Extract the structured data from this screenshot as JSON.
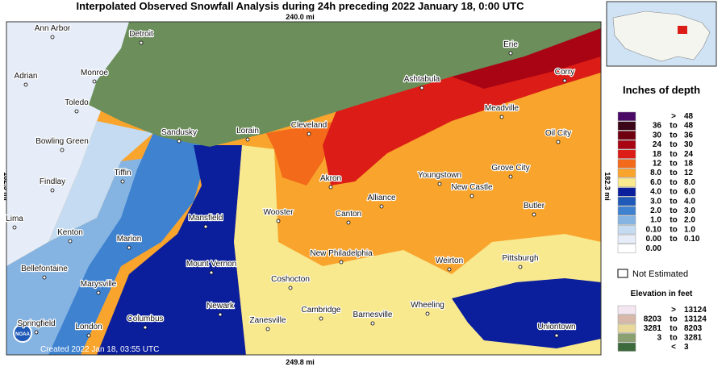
{
  "header": {
    "title": "Interpolated Observed Snowfall Analysis during 24h preceding 2022 January 18, 0:00 UTC"
  },
  "scale": {
    "top": "240.0 mi",
    "bottom": "249.8 mi",
    "left": "182.3 mi",
    "right": "182.3 mi"
  },
  "credit": "Created 2022 Jan 18, 03:55 UTC",
  "logo": "NOAA",
  "cities": [
    "Ann Arbor",
    "Detroit",
    "Adrian",
    "Monroe",
    "Toledo",
    "Sandusky",
    "Lorain",
    "Cleveland",
    "Ashtabula",
    "Erie",
    "Corry",
    "Meadville",
    "Oil City",
    "Bowling Green",
    "Tiffin",
    "Findlay",
    "Akron",
    "Youngstown",
    "Grove City",
    "New Castle",
    "Alliance",
    "Wooster",
    "Canton",
    "Mansfield",
    "Butler",
    "Lima",
    "Kenton",
    "Marion",
    "New Philadelphia",
    "Mount Vernon",
    "Weirton",
    "Pittsburgh",
    "Bellefontaine",
    "Coshocton",
    "Marysville",
    "Cambridge",
    "Barnesville",
    "Wheeling",
    "Newark",
    "Zanesville",
    "Springfield",
    "London",
    "Columbus",
    "Uniontown"
  ],
  "legend": {
    "title": "Inches of depth",
    "rows": [
      {
        "color": "#4b0a66",
        "sep": ">",
        "high": "48"
      },
      {
        "color": "#3a0618",
        "low": "36",
        "sep": "to",
        "high": "48"
      },
      {
        "color": "#6e0010",
        "low": "30",
        "sep": "to",
        "high": "36"
      },
      {
        "color": "#a80414",
        "low": "24",
        "sep": "to",
        "high": "30"
      },
      {
        "color": "#dc1c16",
        "low": "18",
        "sep": "to",
        "high": "24"
      },
      {
        "color": "#f26a1a",
        "low": "12",
        "sep": "to",
        "high": "18"
      },
      {
        "color": "#f9a42c",
        "low": "8.0",
        "sep": "to",
        "high": "12"
      },
      {
        "color": "#f8e88e",
        "low": "6.0",
        "sep": "to",
        "high": "8.0"
      },
      {
        "color": "#0b1e9c",
        "low": "4.0",
        "sep": "to",
        "high": "6.0"
      },
      {
        "color": "#1f5ab8",
        "low": "3.0",
        "sep": "to",
        "high": "4.0"
      },
      {
        "color": "#3f82d0",
        "low": "2.0",
        "sep": "to",
        "high": "3.0"
      },
      {
        "color": "#86b4e2",
        "low": "1.0",
        "sep": "to",
        "high": "2.0"
      },
      {
        "color": "#c4dbf1",
        "low": "0.10",
        "sep": "to",
        "high": "1.0"
      },
      {
        "color": "#e6edf8",
        "low": "0.00",
        "sep": "to",
        "high": "0.10"
      },
      {
        "color": "#ffffff",
        "low": "0.00"
      }
    ],
    "not_estimated": "Not Estimated"
  },
  "elevation": {
    "title": "Elevation in feet",
    "rows": [
      {
        "color": "#f4e6f0",
        "sep": ">",
        "high": "13124"
      },
      {
        "color": "#d8b8a8",
        "low": "8203",
        "sep": "to",
        "high": "13124"
      },
      {
        "color": "#e8d89a",
        "low": "3281",
        "sep": "to",
        "high": "8203"
      },
      {
        "color": "#8aa070",
        "low": "3",
        "sep": "to",
        "high": "3281"
      },
      {
        "color": "#3c6a3c",
        "sep": "<",
        "high": "3"
      }
    ]
  }
}
